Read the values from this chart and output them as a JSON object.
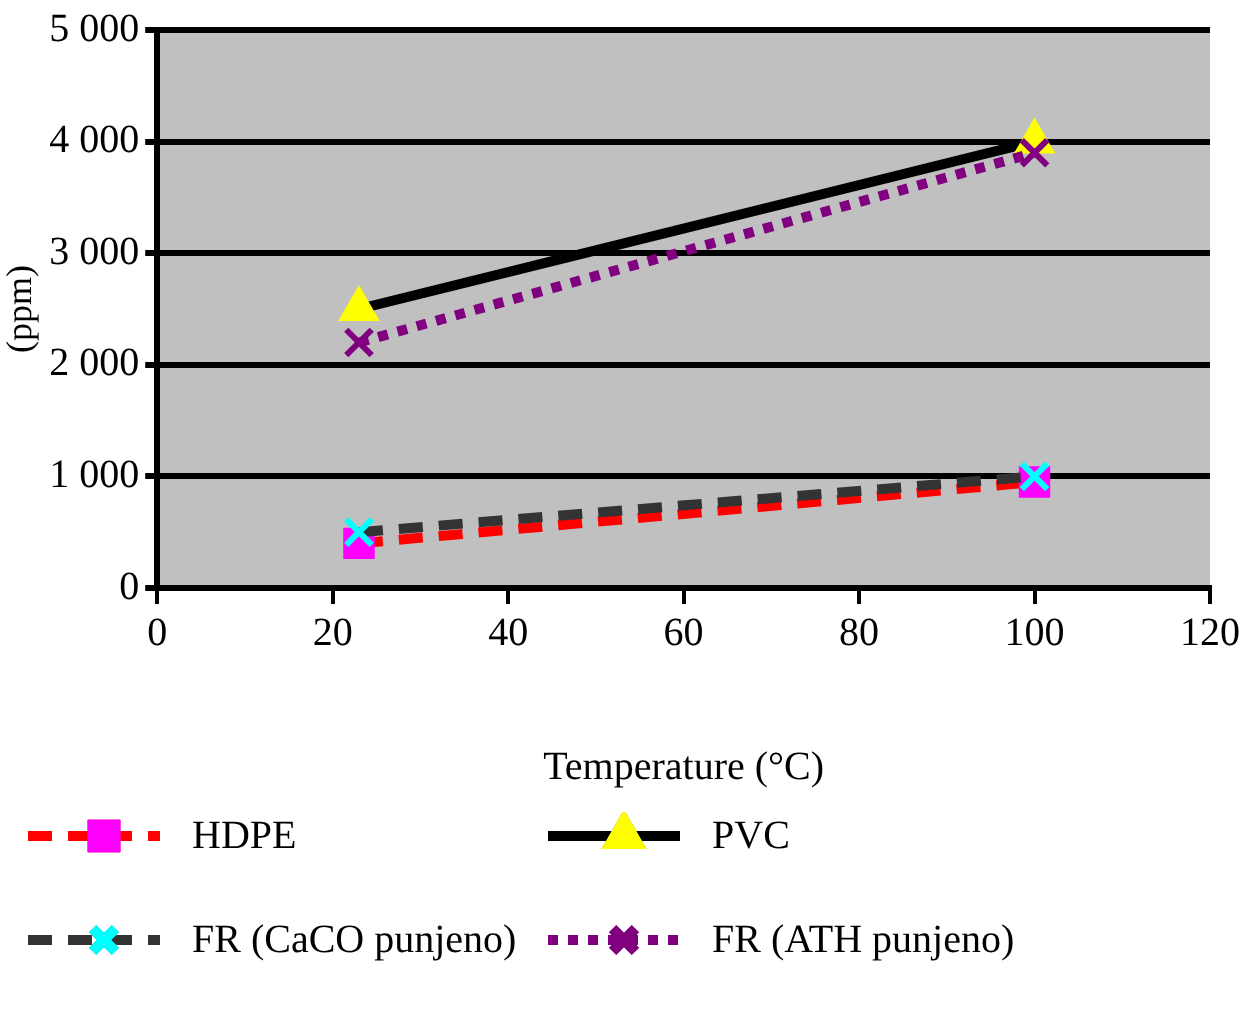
{
  "chart_data": {
    "type": "line",
    "xlabel": "Temperature (°C)",
    "ylabel": "(ppm)",
    "xlim": [
      0,
      120
    ],
    "xticks": [
      0,
      20,
      40,
      60,
      80,
      100,
      120
    ],
    "ylim": [
      0,
      5000
    ],
    "yticks": [
      {
        "value": 0,
        "label": "0"
      },
      {
        "value": 1000,
        "label": "1 000"
      },
      {
        "value": 2000,
        "label": "2 000"
      },
      {
        "value": 3000,
        "label": "3 000"
      },
      {
        "value": 4000,
        "label": "4 000"
      },
      {
        "value": 5000,
        "label": "5 000"
      }
    ],
    "grid": "y",
    "legend": "bottom",
    "x": [
      23,
      100
    ],
    "series": [
      {
        "name": "HDPE",
        "color": "#ff0000",
        "colors": [
          "#ff00ff",
          "#ff00ff"
        ],
        "marker": "square",
        "line_style": "dashed",
        "values": [
          400,
          950
        ]
      },
      {
        "name": "FR (CaCO punjeno)",
        "color": "#333333",
        "colors": [
          "#00ffff",
          "#00ffff"
        ],
        "marker": "cross",
        "line_style": "dashed",
        "values": [
          500,
          1000
        ]
      },
      {
        "name": "PVC",
        "color": "#000000",
        "colors": [
          "#ffff00",
          "#ffff00"
        ],
        "marker": "triangle",
        "line_style": "solid",
        "values": [
          2500,
          4000
        ]
      },
      {
        "name": "FR (ATH punjeno)",
        "color": "#800080",
        "colors": [
          "#800080",
          "#800080"
        ],
        "marker": "cross",
        "line_style": "dotted",
        "values": [
          2200,
          3900
        ]
      }
    ]
  }
}
